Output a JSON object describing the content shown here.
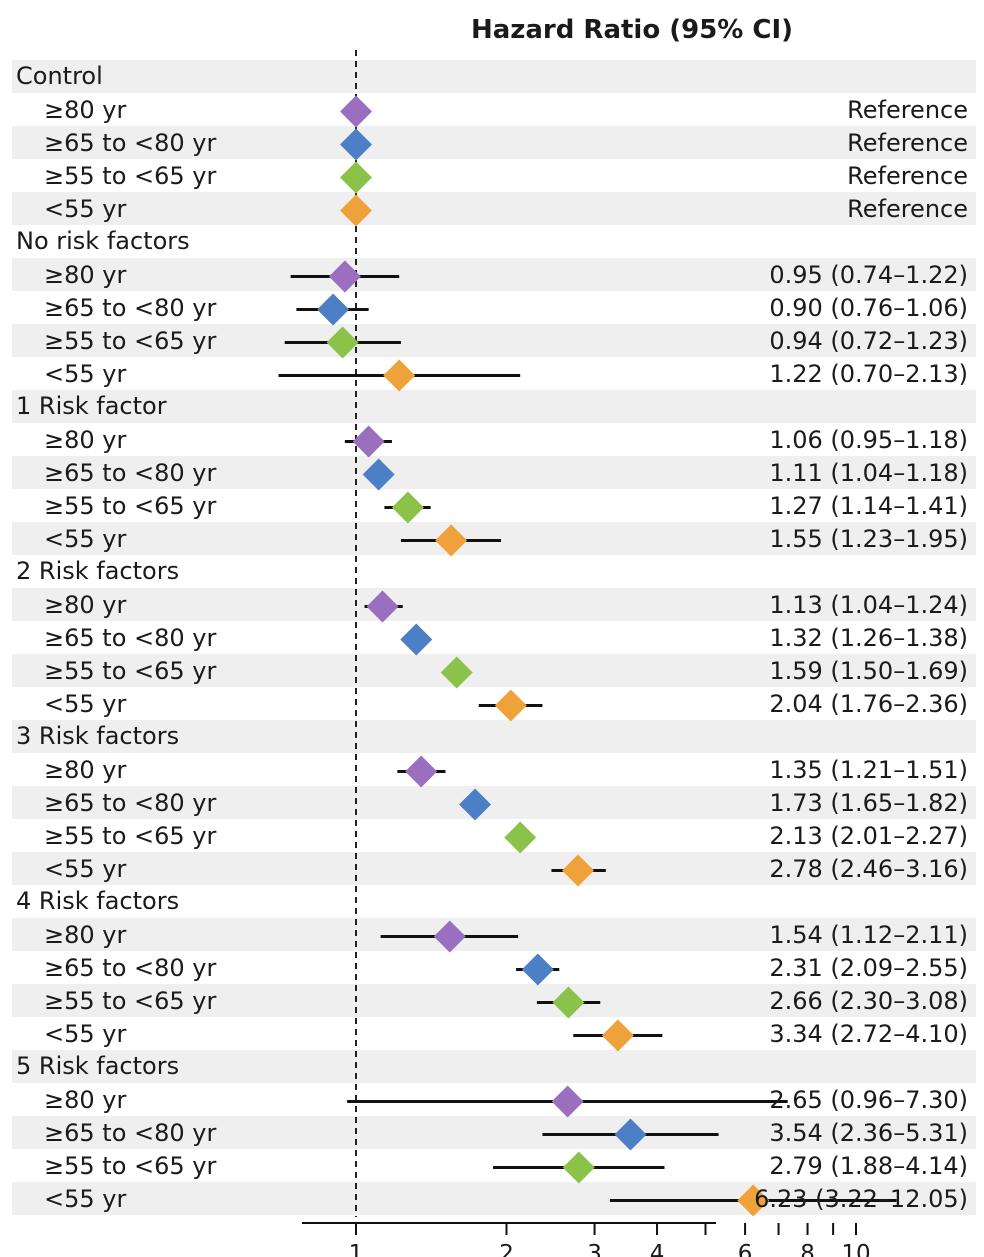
{
  "chart_data": {
    "type": "forest",
    "title": "Hazard Ratio (95% CI)",
    "x_scale": "log",
    "xlim": [
      0.82,
      12
    ],
    "reference_line": 1,
    "x_ticks": [
      1,
      2,
      3,
      4,
      6,
      8,
      10
    ],
    "x_minor_ticks": [
      5,
      7,
      9
    ],
    "age_group_colors": {
      "≥80 yr": "#9b6fc0",
      "≥65 to <80 yr": "#4d7fc6",
      "≥55 to <65 yr": "#8bc34a",
      "<55 yr": "#f0a23a"
    },
    "groups": [
      {
        "label": "Control",
        "rows": [
          {
            "label": "≥80 yr",
            "hr": 1.0,
            "lo": null,
            "hi": null,
            "text": "Reference"
          },
          {
            "label": "≥65 to <80 yr",
            "hr": 1.0,
            "lo": null,
            "hi": null,
            "text": "Reference"
          },
          {
            "label": "≥55 to <65 yr",
            "hr": 1.0,
            "lo": null,
            "hi": null,
            "text": "Reference"
          },
          {
            "label": "<55 yr",
            "hr": 1.0,
            "lo": null,
            "hi": null,
            "text": "Reference"
          }
        ]
      },
      {
        "label": "No risk factors",
        "rows": [
          {
            "label": "≥80 yr",
            "hr": 0.95,
            "lo": 0.74,
            "hi": 1.22,
            "text": "0.95 (0.74–1.22)"
          },
          {
            "label": "≥65 to <80 yr",
            "hr": 0.9,
            "lo": 0.76,
            "hi": 1.06,
            "text": "0.90 (0.76–1.06)"
          },
          {
            "label": "≥55 to <65 yr",
            "hr": 0.94,
            "lo": 0.72,
            "hi": 1.23,
            "text": "0.94 (0.72–1.23)"
          },
          {
            "label": "<55 yr",
            "hr": 1.22,
            "lo": 0.7,
            "hi": 2.13,
            "text": "1.22 (0.70–2.13)"
          }
        ]
      },
      {
        "label": "1 Risk factor",
        "rows": [
          {
            "label": "≥80 yr",
            "hr": 1.06,
            "lo": 0.95,
            "hi": 1.18,
            "text": "1.06 (0.95–1.18)"
          },
          {
            "label": "≥65 to <80 yr",
            "hr": 1.11,
            "lo": 1.04,
            "hi": 1.18,
            "text": "1.11 (1.04–1.18)"
          },
          {
            "label": "≥55 to <65 yr",
            "hr": 1.27,
            "lo": 1.14,
            "hi": 1.41,
            "text": "1.27 (1.14–1.41)"
          },
          {
            "label": "<55 yr",
            "hr": 1.55,
            "lo": 1.23,
            "hi": 1.95,
            "text": "1.55 (1.23–1.95)"
          }
        ]
      },
      {
        "label": "2 Risk factors",
        "rows": [
          {
            "label": "≥80 yr",
            "hr": 1.13,
            "lo": 1.04,
            "hi": 1.24,
            "text": "1.13 (1.04–1.24)"
          },
          {
            "label": "≥65 to <80 yr",
            "hr": 1.32,
            "lo": 1.26,
            "hi": 1.38,
            "text": "1.32 (1.26–1.38)"
          },
          {
            "label": "≥55 to <65 yr",
            "hr": 1.59,
            "lo": 1.5,
            "hi": 1.69,
            "text": "1.59 (1.50–1.69)"
          },
          {
            "label": "<55 yr",
            "hr": 2.04,
            "lo": 1.76,
            "hi": 2.36,
            "text": "2.04 (1.76–2.36)"
          }
        ]
      },
      {
        "label": "3 Risk factors",
        "rows": [
          {
            "label": "≥80 yr",
            "hr": 1.35,
            "lo": 1.21,
            "hi": 1.51,
            "text": "1.35 (1.21–1.51)"
          },
          {
            "label": "≥65 to <80 yr",
            "hr": 1.73,
            "lo": 1.65,
            "hi": 1.82,
            "text": "1.73 (1.65–1.82)"
          },
          {
            "label": "≥55 to <65 yr",
            "hr": 2.13,
            "lo": 2.01,
            "hi": 2.27,
            "text": "2.13 (2.01–2.27)"
          },
          {
            "label": "<55 yr",
            "hr": 2.78,
            "lo": 2.46,
            "hi": 3.16,
            "text": "2.78 (2.46–3.16)"
          }
        ]
      },
      {
        "label": "4 Risk factors",
        "rows": [
          {
            "label": "≥80 yr",
            "hr": 1.54,
            "lo": 1.12,
            "hi": 2.11,
            "text": "1.54 (1.12–2.11)"
          },
          {
            "label": "≥65 to <80 yr",
            "hr": 2.31,
            "lo": 2.09,
            "hi": 2.55,
            "text": "2.31 (2.09–2.55)"
          },
          {
            "label": "≥55 to <65 yr",
            "hr": 2.66,
            "lo": 2.3,
            "hi": 3.08,
            "text": "2.66 (2.30–3.08)"
          },
          {
            "label": "<55 yr",
            "hr": 3.34,
            "lo": 2.72,
            "hi": 4.1,
            "text": "3.34 (2.72–4.10)"
          }
        ]
      },
      {
        "label": "5 Risk factors",
        "rows": [
          {
            "label": "≥80 yr",
            "hr": 2.65,
            "lo": 0.96,
            "hi": 7.3,
            "text": "2.65 (0.96–7.30)"
          },
          {
            "label": "≥65 to <80 yr",
            "hr": 3.54,
            "lo": 2.36,
            "hi": 5.31,
            "text": "3.54 (2.36–5.31)"
          },
          {
            "label": "≥55 to <65 yr",
            "hr": 2.79,
            "lo": 1.88,
            "hi": 4.14,
            "text": "2.79 (1.88–4.14)"
          },
          {
            "label": "<55 yr",
            "hr": 6.23,
            "lo": 3.22,
            "hi": 12.05,
            "text": "6.23 (3.22–12.05)"
          }
        ]
      }
    ]
  }
}
